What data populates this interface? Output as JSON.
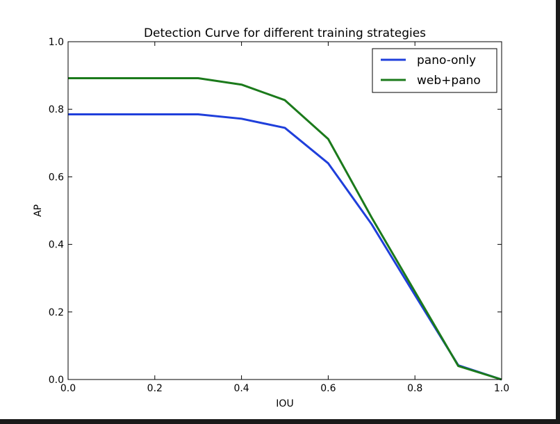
{
  "chart_data": {
    "type": "line",
    "title": "Detection Curve for different training strategies",
    "xlabel": "IOU",
    "ylabel": "AP",
    "xlim": [
      0.0,
      1.0
    ],
    "ylim": [
      0.0,
      1.0
    ],
    "xticks": [
      "0.0",
      "0.2",
      "0.4",
      "0.6",
      "0.8",
      "1.0"
    ],
    "yticks": [
      "0.0",
      "0.2",
      "0.4",
      "0.6",
      "0.8",
      "1.0"
    ],
    "grid": false,
    "legend_position": "top-right",
    "x": [
      0.0,
      0.1,
      0.2,
      0.3,
      0.4,
      0.5,
      0.6,
      0.7,
      0.8,
      0.9,
      1.0
    ],
    "series": [
      {
        "name": "pano-only",
        "color": "#1f3fdb",
        "values": [
          0.785,
          0.785,
          0.785,
          0.785,
          0.772,
          0.745,
          0.64,
          0.46,
          0.25,
          0.042,
          0.0
        ]
      },
      {
        "name": "web+pano",
        "color": "#1b7a1b",
        "values": [
          0.892,
          0.892,
          0.892,
          0.892,
          0.873,
          0.827,
          0.712,
          0.48,
          0.26,
          0.04,
          0.0
        ]
      }
    ]
  }
}
